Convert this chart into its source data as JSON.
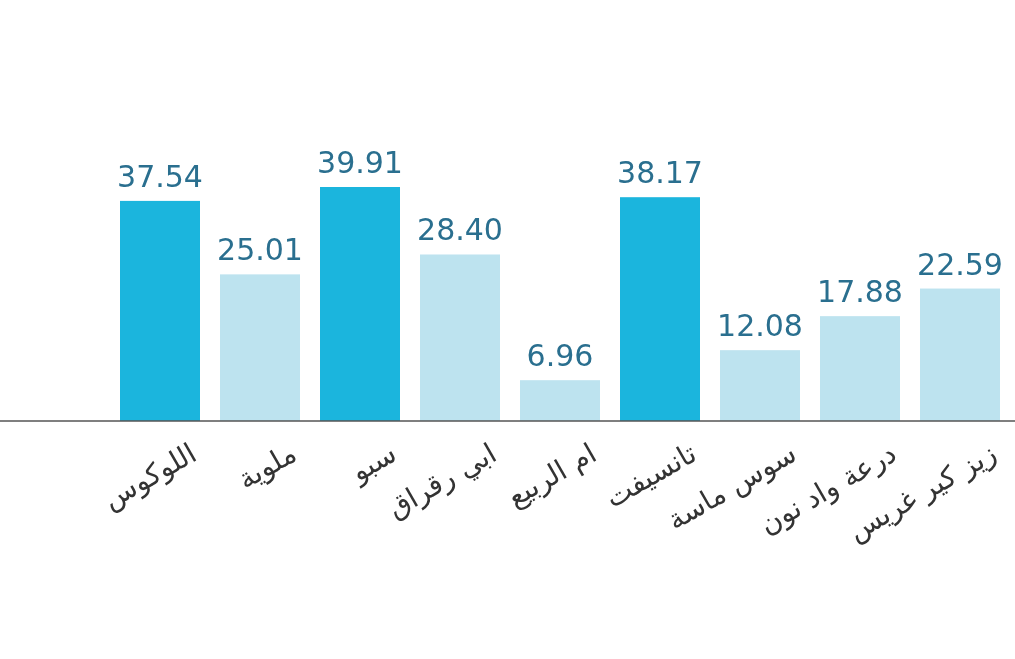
{
  "chart_data": {
    "type": "bar",
    "categories": [
      "اللوكوس",
      "ملوية",
      "سبو",
      "ابي رقراق",
      "ام الربيع",
      "تانسيفت",
      "سوس ماسة",
      "درعة واد نون",
      "زيز كير غريس"
    ],
    "values": [
      37.54,
      25.01,
      39.91,
      28.4,
      6.96,
      38.17,
      12.08,
      17.88,
      22.59
    ],
    "value_labels": [
      "37.54",
      "25.01",
      "39.91",
      "28.40",
      "6.96",
      "38.17",
      "12.08",
      "17.88",
      "22.59"
    ],
    "colors": [
      "#1bb5dd",
      "#bde3ef",
      "#1bb5dd",
      "#bde3ef",
      "#bde3ef",
      "#1bb5dd",
      "#bde3ef",
      "#bde3ef",
      "#bde3ef"
    ]
  }
}
